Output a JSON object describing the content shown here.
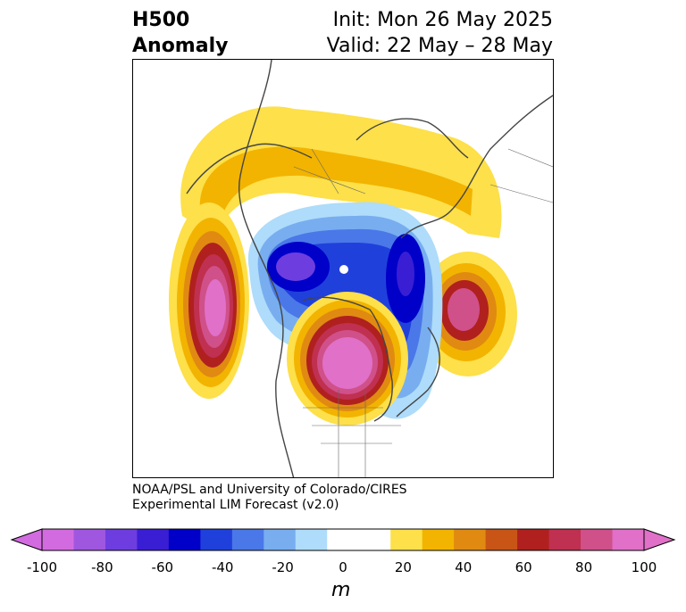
{
  "title": {
    "left_line1": "H500",
    "left_line2": "Anomaly",
    "right_line1": "Init: Mon 26 May 2025",
    "right_line2": "Valid: 22 May – 28 May"
  },
  "credit": {
    "line1": "NOAA/PSL and University of Colorado/CIRES",
    "line2": "Experimental LIM Forecast (v2.0)"
  },
  "colorbar": {
    "unit_label": "m",
    "tick_labels": [
      "-100",
      "-80",
      "-60",
      "-40",
      "-20",
      "0",
      "20",
      "40",
      "60",
      "80",
      "100"
    ],
    "colors": [
      "#d36be0",
      "#a057e0",
      "#6d3de0",
      "#3a1ed4",
      "#0000c8",
      "#2040dc",
      "#4a78e8",
      "#78aef0",
      "#aedcfa",
      "#ffffff",
      "#ffffff",
      "#fde04a",
      "#f2b400",
      "#e08a12",
      "#c85516",
      "#b0201e",
      "#c03050",
      "#d0508a",
      "#e070c8"
    ]
  }
}
